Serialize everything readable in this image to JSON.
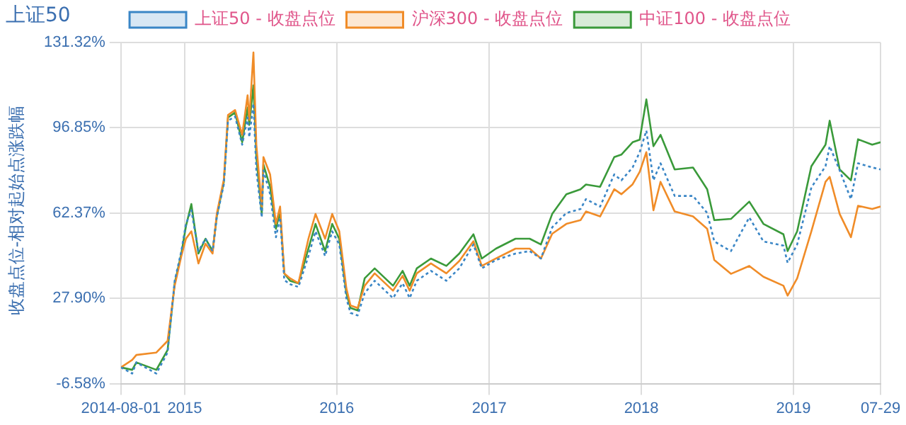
{
  "chart_data": {
    "type": "line",
    "title": "上证50",
    "ylabel": "收盘点位-相对起始点涨跌幅",
    "legend": "top",
    "grid": true,
    "marker": "none",
    "x": [
      "2014-08-01",
      "2014-08-28",
      "2014-09-07",
      "2014-10-25",
      "2014-11-21",
      "2014-12-08",
      "2014-12-24",
      "2015-01-04",
      "2015-01-17",
      "2015-02-03",
      "2015-02-20",
      "2015-03-09",
      "2015-03-19",
      "2015-04-05",
      "2015-04-15",
      "2015-05-02",
      "2015-05-19",
      "2015-06-01",
      "2015-06-05",
      "2015-06-15",
      "2015-06-22",
      "2015-07-05",
      "2015-07-09",
      "2015-07-25",
      "2015-08-08",
      "2015-08-18",
      "2015-08-28",
      "2015-09-11",
      "2015-10-01",
      "2015-10-25",
      "2015-11-11",
      "2015-12-04",
      "2015-12-21",
      "2016-01-07",
      "2016-01-24",
      "2016-02-03",
      "2016-02-20",
      "2016-03-08",
      "2016-04-01",
      "2016-05-15",
      "2016-06-07",
      "2016-06-24",
      "2016-07-11",
      "2016-08-14",
      "2016-09-20",
      "2016-10-21",
      "2016-11-24",
      "2016-12-14",
      "2017-01-17",
      "2017-03-05",
      "2017-04-08",
      "2017-05-05",
      "2017-06-01",
      "2017-07-05",
      "2017-08-08",
      "2017-08-21",
      "2017-09-24",
      "2017-10-28",
      "2017-11-14",
      "2017-12-11",
      "2017-12-28",
      "2018-01-13",
      "2018-01-30",
      "2018-02-16",
      "2018-03-22",
      "2018-05-05",
      "2018-06-08",
      "2018-06-25",
      "2018-08-04",
      "2018-09-17",
      "2018-10-21",
      "2018-12-08",
      "2018-12-18",
      "2019-01-10",
      "2019-02-13",
      "2019-03-19",
      "2019-03-29",
      "2019-04-22",
      "2019-05-19",
      "2019-06-05",
      "2019-07-09",
      "2019-07-29"
    ],
    "xlim": [
      "2014-08-01",
      "2019-07-29"
    ],
    "xticks": [
      {
        "value": "2014-08-01",
        "label": "2014-08-01"
      },
      {
        "value": "2015-01-01",
        "label": "2015"
      },
      {
        "value": "2016-01-01",
        "label": "2016"
      },
      {
        "value": "2017-01-01",
        "label": "2017"
      },
      {
        "value": "2018-01-01",
        "label": "2018"
      },
      {
        "value": "2019-01-01",
        "label": "2019"
      },
      {
        "value": "2019-07-29",
        "label": "07-29"
      }
    ],
    "ylim": [
      -6.58,
      131.32
    ],
    "yticks": [
      {
        "value": -6.58,
        "label": "-6.58%"
      },
      {
        "value": 27.9,
        "label": "27.90%"
      },
      {
        "value": 62.37,
        "label": "62.37%"
      },
      {
        "value": 96.85,
        "label": "96.85%"
      },
      {
        "value": 131.32,
        "label": "131.32%"
      }
    ],
    "series": [
      {
        "name": "上证50 - 收盘点位",
        "color": "#3a86c6",
        "line_style": "dotted",
        "values": [
          0,
          -2.5,
          2,
          -2.5,
          6,
          35,
          47,
          58,
          63.5,
          47,
          52,
          47,
          60.6,
          74,
          99.7,
          101.4,
          90,
          101,
          93,
          106.6,
          79.6,
          60.6,
          79.6,
          70,
          52.6,
          60.6,
          35.3,
          33.6,
          32.5,
          45,
          55,
          45,
          55,
          49.7,
          27.9,
          22,
          21,
          30,
          35,
          28,
          34,
          28,
          35,
          39,
          35,
          40,
          49.7,
          40,
          43.4,
          46,
          47,
          44,
          56.6,
          62.4,
          64,
          68,
          65,
          78,
          75.6,
          80.8,
          87,
          95.7,
          75.6,
          82.5,
          69.3,
          69.3,
          62.4,
          50.9,
          47,
          60.6,
          50.9,
          49.2,
          42.3,
          49.7,
          72.7,
          81.3,
          89.4,
          79.6,
          68,
          82.5,
          80.8,
          80
        ]
      },
      {
        "name": "沪深300 - 收盘点位",
        "color": "#f08c28",
        "line_style": "solid",
        "values": [
          0,
          3,
          5,
          6,
          10.7,
          33,
          45,
          52,
          55,
          42,
          50,
          46,
          62,
          76,
          102,
          104,
          94,
          110,
          100,
          127.3,
          90,
          65,
          85,
          78,
          58,
          65,
          38,
          36,
          34,
          52,
          62,
          52,
          62,
          55,
          32,
          25,
          24,
          33,
          38,
          31,
          37,
          31,
          38,
          42,
          38,
          43,
          51,
          41,
          44,
          48,
          48,
          44,
          54,
          58,
          59.5,
          63,
          61,
          72,
          70,
          74,
          79,
          87,
          63.5,
          75,
          63,
          61,
          56,
          43.4,
          37.8,
          41,
          36.6,
          33,
          29,
          36,
          55,
          75,
          77,
          62,
          52.6,
          65.3,
          64,
          65
        ]
      },
      {
        "name": "中证100 - 收盘点位",
        "color": "#3a9a3a",
        "line_style": "solid",
        "values": [
          0,
          -1,
          2,
          -1,
          7,
          34,
          46,
          57,
          66,
          46,
          52,
          47,
          61,
          75,
          101,
          103,
          91,
          105,
          98,
          114,
          85,
          62,
          82,
          73,
          56,
          63,
          38,
          35,
          34,
          48,
          58,
          47,
          58,
          52,
          30,
          24,
          23,
          36,
          40,
          33,
          39,
          33,
          40,
          44,
          41,
          46,
          53.8,
          44,
          48,
          52,
          52,
          49.7,
          62,
          70,
          72,
          73.9,
          73,
          85,
          86,
          91,
          92,
          108.3,
          89.4,
          94,
          80,
          80.8,
          72,
          59.5,
          60,
          67,
          58,
          53.8,
          47,
          55,
          81.3,
          90,
          99.7,
          80,
          75.6,
          92.2,
          90,
          91
        ]
      }
    ]
  }
}
